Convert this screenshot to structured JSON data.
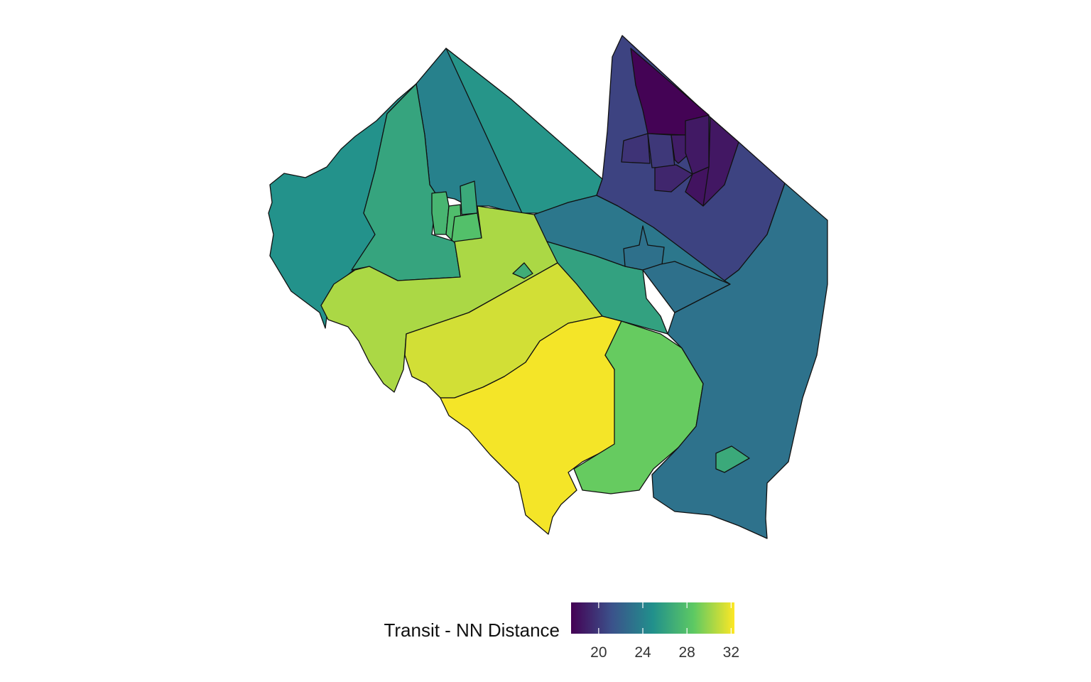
{
  "legend": {
    "title": "Transit - NN Distance",
    "min": 17.5,
    "max": 32.3,
    "ticks": [
      {
        "value": 20,
        "label": "20"
      },
      {
        "value": 24,
        "label": "24"
      },
      {
        "value": 28,
        "label": "28"
      },
      {
        "value": 32,
        "label": "32"
      }
    ],
    "palette": "viridis",
    "colors": [
      "#440154",
      "#3b528b",
      "#21908c",
      "#5dc963",
      "#fde725"
    ]
  },
  "regions": [
    {
      "id": "west",
      "value": 25.0
    },
    {
      "id": "north-central",
      "value": 24.0
    },
    {
      "id": "northeast-wedge",
      "value": 25.2
    },
    {
      "id": "west-central",
      "value": 26.2
    },
    {
      "id": "center-town-a",
      "value": 27.3
    },
    {
      "id": "center-town-b",
      "value": 27.8
    },
    {
      "id": "center-town-c",
      "value": 28.0
    },
    {
      "id": "center-town-d",
      "value": 26.5
    },
    {
      "id": "central-band",
      "value": 30.4
    },
    {
      "id": "small-enclave",
      "value": 26.8
    },
    {
      "id": "mid-band",
      "value": 31.3
    },
    {
      "id": "south",
      "value": 32.1
    },
    {
      "id": "south-east-band",
      "value": 28.8
    },
    {
      "id": "middle-strip",
      "value": 23.4
    },
    {
      "id": "middle-green",
      "value": 26.0
    },
    {
      "id": "middle-town",
      "value": 23.0
    },
    {
      "id": "east-small",
      "value": 23.0
    },
    {
      "id": "north-purple",
      "value": 20.5
    },
    {
      "id": "city-core",
      "value": 17.6
    },
    {
      "id": "city-east",
      "value": 18.5
    },
    {
      "id": "city-west-1",
      "value": 19.8
    },
    {
      "id": "city-west-2",
      "value": 20.0
    },
    {
      "id": "city-mid-1",
      "value": 18.8
    },
    {
      "id": "city-mid-2",
      "value": 19.2
    },
    {
      "id": "city-mid-3",
      "value": 18.6
    },
    {
      "id": "city-south",
      "value": 18.3
    },
    {
      "id": "east-large",
      "value": 23.1
    },
    {
      "id": "east-enclave",
      "value": 26.5
    }
  ]
}
